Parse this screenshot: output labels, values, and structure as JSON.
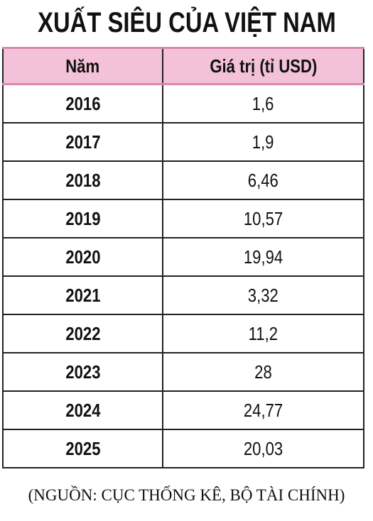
{
  "title": "XUẤT SIÊU CỦA VIỆT NAM",
  "table": {
    "header": [
      "Năm",
      "Giá trị (tỉ USD)"
    ],
    "rows": [
      [
        "2016",
        "1,6"
      ],
      [
        "2017",
        "1,9"
      ],
      [
        "2018",
        "6,46"
      ],
      [
        "2019",
        "10,57"
      ],
      [
        "2020",
        "19,94"
      ],
      [
        "2021",
        "3,32"
      ],
      [
        "2022",
        "11,2"
      ],
      [
        "2023",
        "28"
      ],
      [
        "2024",
        "24,77"
      ],
      [
        "2025",
        "20,03"
      ]
    ]
  },
  "source": "(NGUỒN: CỤC THỐNG KÊ, BỘ TÀI CHÍNH)"
}
